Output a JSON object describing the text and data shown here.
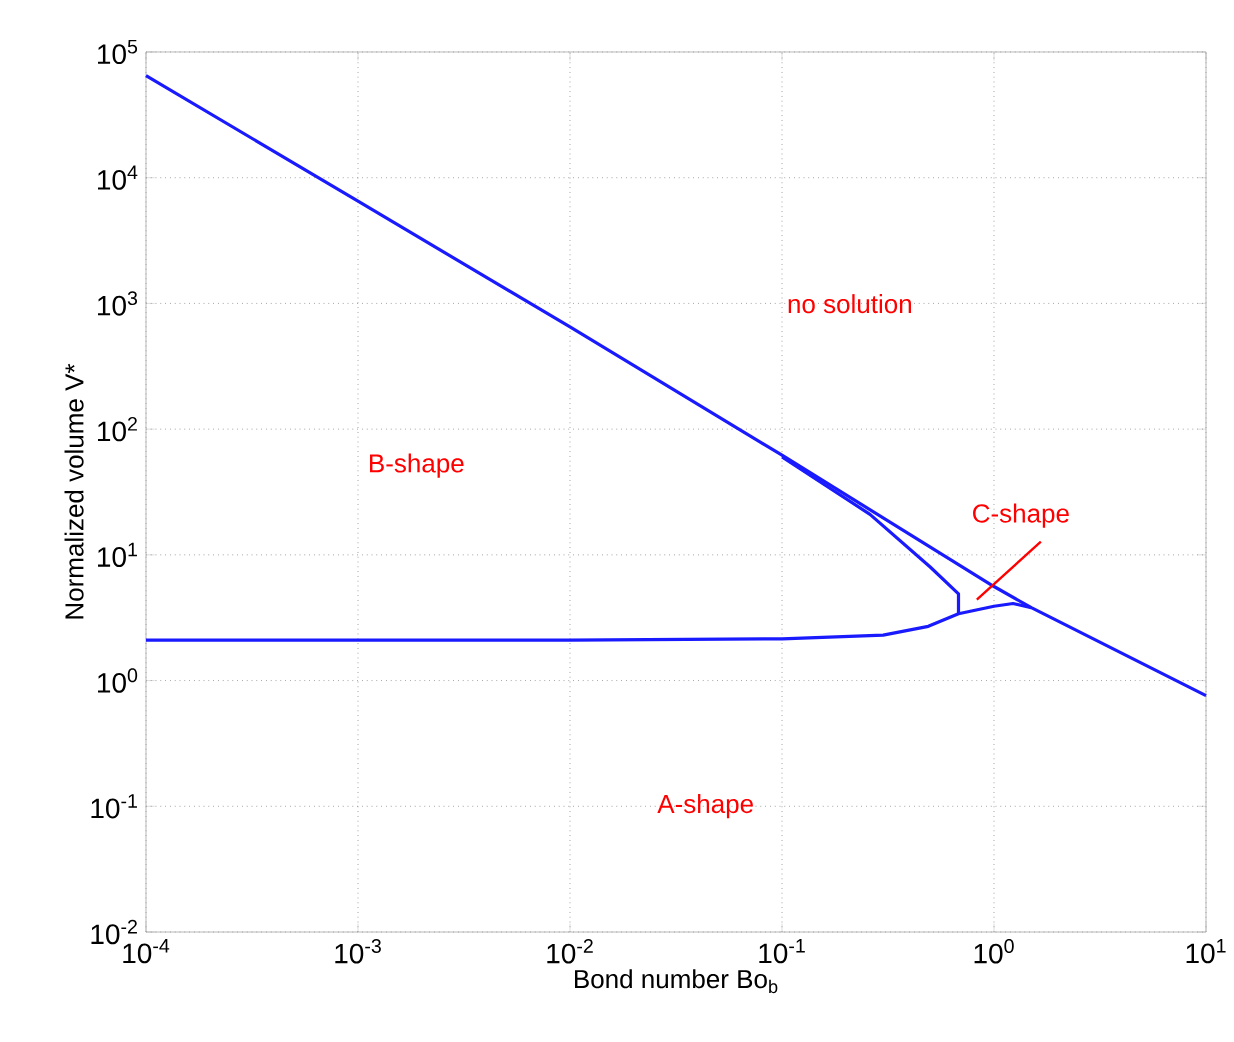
{
  "chart_data": {
    "type": "line",
    "xlabel": "Bond number Bo$_{b}$",
    "ylabel": "Normalized volume V*",
    "log": "xy",
    "grid": true,
    "marker": "none",
    "line_style": "solid",
    "xlim": [
      0.0001,
      10
    ],
    "ylim": [
      0.01,
      100000
    ],
    "xticks": [
      {
        "value": 0.0001,
        "label": "10$^{-4}$"
      },
      {
        "value": 0.001,
        "label": "10$^{-3}$"
      },
      {
        "value": 0.01,
        "label": "10$^{-2}$"
      },
      {
        "value": 0.1,
        "label": "10$^{-1}$"
      },
      {
        "value": 1,
        "label": "10$^{0}$"
      },
      {
        "value": 10,
        "label": "10$^{1}$"
      }
    ],
    "yticks": [
      {
        "value": 0.01,
        "label": "10$^{-2}$"
      },
      {
        "value": 0.1,
        "label": "10$^{-1}$"
      },
      {
        "value": 1,
        "label": "10$^{0}$"
      },
      {
        "value": 10,
        "label": "10$^{1}$"
      },
      {
        "value": 100,
        "label": "10$^{2}$"
      },
      {
        "value": 1000,
        "label": "10$^{3}$"
      },
      {
        "value": 10000,
        "label": "10$^{4}$"
      },
      {
        "value": 100000,
        "label": "10$^{5}$"
      }
    ],
    "series": [
      {
        "color": "#1a1aff",
        "x": [
          0.0001,
          0.001,
          0.01,
          0.1,
          1,
          1.5,
          10
        ],
        "values": [
          65000,
          6500,
          650,
          62,
          5.6,
          3.8,
          0.76
        ]
      },
      {
        "color": "#1a1aff",
        "x": [
          0.1,
          0.26,
          0.5,
          0.68,
          0.68
        ],
        "values": [
          60,
          21,
          8,
          4.9,
          3.4
        ]
      },
      {
        "color": "#1a1aff",
        "x": [
          0.0001,
          0.001,
          0.01,
          0.1,
          0.3,
          0.49,
          0.68,
          1.0,
          1.23,
          1.5
        ],
        "values": [
          2.1,
          2.1,
          2.1,
          2.15,
          2.3,
          2.7,
          3.4,
          3.9,
          4.1,
          3.8
        ]
      }
    ],
    "annotations": [
      "no solution",
      "B-shape",
      {
        "text": "C-shape",
        "x": 0.83,
        "y": 4.4
      },
      "A-shape"
    ]
  }
}
